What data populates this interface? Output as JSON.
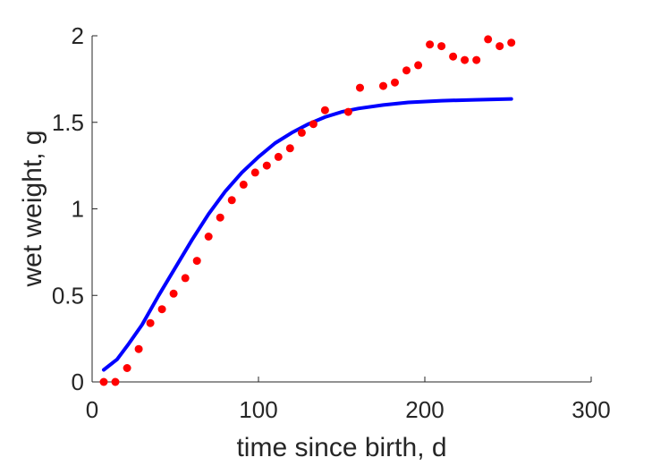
{
  "chart_data": {
    "type": "scatter",
    "title": "",
    "xlabel": "time since birth, d",
    "ylabel": "wet weight, g",
    "xlim": [
      0,
      300
    ],
    "ylim": [
      0,
      2
    ],
    "xticks": [
      0,
      100,
      200,
      300
    ],
    "yticks": [
      0,
      0.5,
      1,
      1.5,
      2
    ],
    "xtick_labels": [
      "0",
      "100",
      "200",
      "300"
    ],
    "ytick_labels": [
      "0",
      "0.5",
      "1",
      "1.5",
      "2"
    ],
    "grid": false,
    "legend": false,
    "colors": {
      "points": "#ff0000",
      "line": "#0000ff",
      "axes": "#262626"
    },
    "series": [
      {
        "kind": "scatter",
        "x": [
          7,
          14,
          21,
          28,
          35,
          42,
          49,
          56,
          63,
          70,
          77,
          84,
          91,
          98,
          105,
          112,
          119,
          126,
          133,
          140,
          154,
          161,
          175,
          182,
          189,
          196,
          203,
          210,
          217,
          224,
          231,
          238,
          245,
          252
        ],
        "y": [
          0.0,
          0.0,
          0.08,
          0.19,
          0.34,
          0.42,
          0.51,
          0.6,
          0.7,
          0.84,
          0.95,
          1.05,
          1.14,
          1.21,
          1.25,
          1.3,
          1.35,
          1.44,
          1.49,
          1.57,
          1.56,
          1.7,
          1.71,
          1.73,
          1.8,
          1.83,
          1.95,
          1.94,
          1.88,
          1.86,
          1.86,
          1.98,
          1.94,
          1.96
        ]
      },
      {
        "kind": "line",
        "x": [
          7,
          15,
          22,
          30,
          40,
          50,
          60,
          70,
          80,
          90,
          100,
          110,
          120,
          130,
          140,
          150,
          160,
          175,
          190,
          210,
          230,
          252
        ],
        "y": [
          0.07,
          0.13,
          0.22,
          0.33,
          0.5,
          0.66,
          0.82,
          0.97,
          1.1,
          1.21,
          1.3,
          1.38,
          1.44,
          1.49,
          1.53,
          1.56,
          1.58,
          1.6,
          1.615,
          1.625,
          1.63,
          1.635
        ]
      }
    ]
  }
}
